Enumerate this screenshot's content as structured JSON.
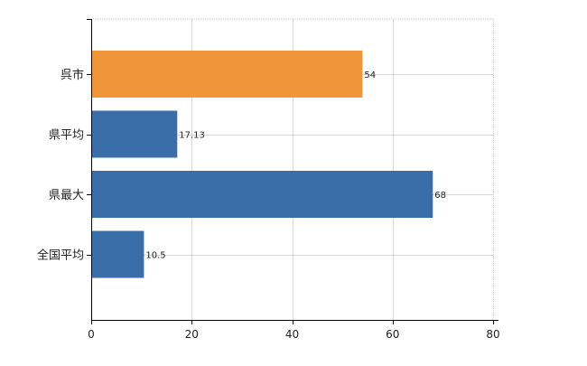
{
  "chart_data": {
    "type": "bar",
    "orientation": "horizontal",
    "categories": [
      "呉市",
      "県平均",
      "県最大",
      "全国平均"
    ],
    "values": [
      54,
      17.13,
      68,
      10.5
    ],
    "value_labels": [
      "54",
      "17.13",
      "68",
      "10.5"
    ],
    "colors": [
      "#f0953a",
      "#3a6ea8",
      "#3a6ea8",
      "#3a6ea8"
    ],
    "xlim": [
      0,
      80
    ],
    "x_ticks": [
      0,
      20,
      40,
      60,
      80
    ],
    "grid": true,
    "title": "",
    "xlabel": "",
    "ylabel": ""
  }
}
